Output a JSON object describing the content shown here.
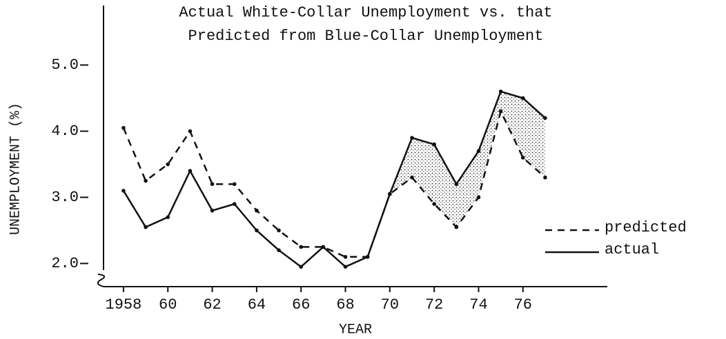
{
  "chart_data": {
    "type": "line",
    "title": "Actual White-Collar Unemployment vs. that",
    "subtitle": "Predicted from Blue-Collar Unemployment",
    "x_label": "YEAR",
    "y_label": "UNEMPLOYMENT (%)",
    "x": [
      1958,
      1959,
      1960,
      1961,
      1962,
      1963,
      1964,
      1965,
      1966,
      1967,
      1968,
      1969,
      1970,
      1971,
      1972,
      1973,
      1974,
      1975,
      1976,
      1977
    ],
    "series": [
      {
        "name": "predicted",
        "color": "#111111",
        "dash": true,
        "values": [
          4.05,
          3.25,
          3.5,
          4.0,
          3.2,
          3.2,
          2.8,
          2.5,
          2.25,
          2.25,
          2.1,
          2.1,
          3.05,
          3.3,
          2.9,
          2.55,
          3.0,
          4.3,
          3.6,
          3.3
        ]
      },
      {
        "name": "actual",
        "color": "#111111",
        "dash": false,
        "values": [
          3.1,
          2.55,
          2.7,
          3.4,
          2.8,
          2.9,
          2.5,
          2.2,
          1.95,
          2.25,
          1.95,
          2.1,
          3.05,
          3.9,
          3.8,
          3.2,
          3.7,
          4.6,
          4.5,
          4.2
        ]
      }
    ],
    "xlim": [
      1957.1,
      1979.8
    ],
    "xticks": [
      1958,
      {
        "value": 1960,
        "label": "60"
      },
      {
        "value": 1962,
        "label": "62"
      },
      {
        "value": 1964,
        "label": "64"
      },
      {
        "value": 1966,
        "label": "66"
      },
      {
        "value": 1968,
        "label": "68"
      },
      {
        "value": 1970,
        "label": "70"
      },
      {
        "value": 1972,
        "label": "72"
      },
      {
        "value": 1974,
        "label": "74"
      },
      {
        "value": 1976,
        "label": "76"
      }
    ],
    "ylim": [
      1.65,
      5.9
    ],
    "yticks": [
      {
        "value": 2,
        "label": "2.0"
      },
      {
        "value": 3,
        "label": "3.0"
      },
      {
        "value": 4,
        "label": "4.0"
      },
      {
        "value": 5,
        "label": "5.0"
      }
    ],
    "legend": "right"
  }
}
